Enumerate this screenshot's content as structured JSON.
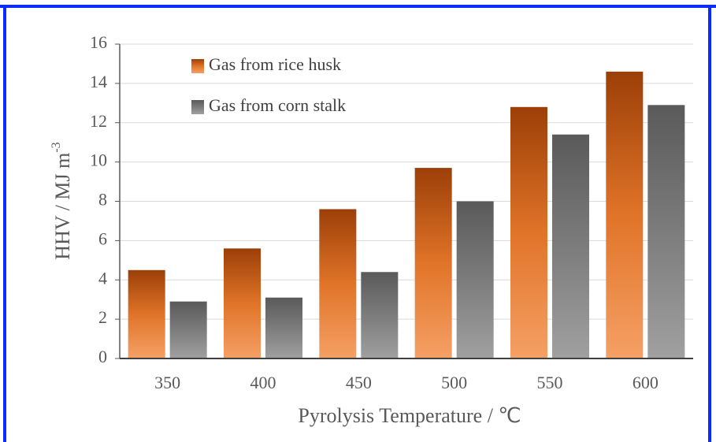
{
  "chart_data": {
    "type": "bar",
    "xlabel": "Pyrolysis Temperature / ℃",
    "ylabel": "HHV / MJ m",
    "ylabel_sup": "-3",
    "categories": [
      "350",
      "400",
      "450",
      "500",
      "550",
      "600"
    ],
    "series": [
      {
        "name": "Gas from rice husk",
        "color": "#e07428",
        "values": [
          4.5,
          5.6,
          7.6,
          9.7,
          12.8,
          14.6
        ]
      },
      {
        "name": "Gas from corn stalk",
        "color": "#7c7c7c",
        "values": [
          2.9,
          3.1,
          4.4,
          8.0,
          11.4,
          12.9
        ]
      }
    ],
    "ylim": [
      0,
      16
    ],
    "yticks": [
      0,
      2,
      4,
      6,
      8,
      10,
      12,
      14,
      16
    ],
    "grid": true
  }
}
